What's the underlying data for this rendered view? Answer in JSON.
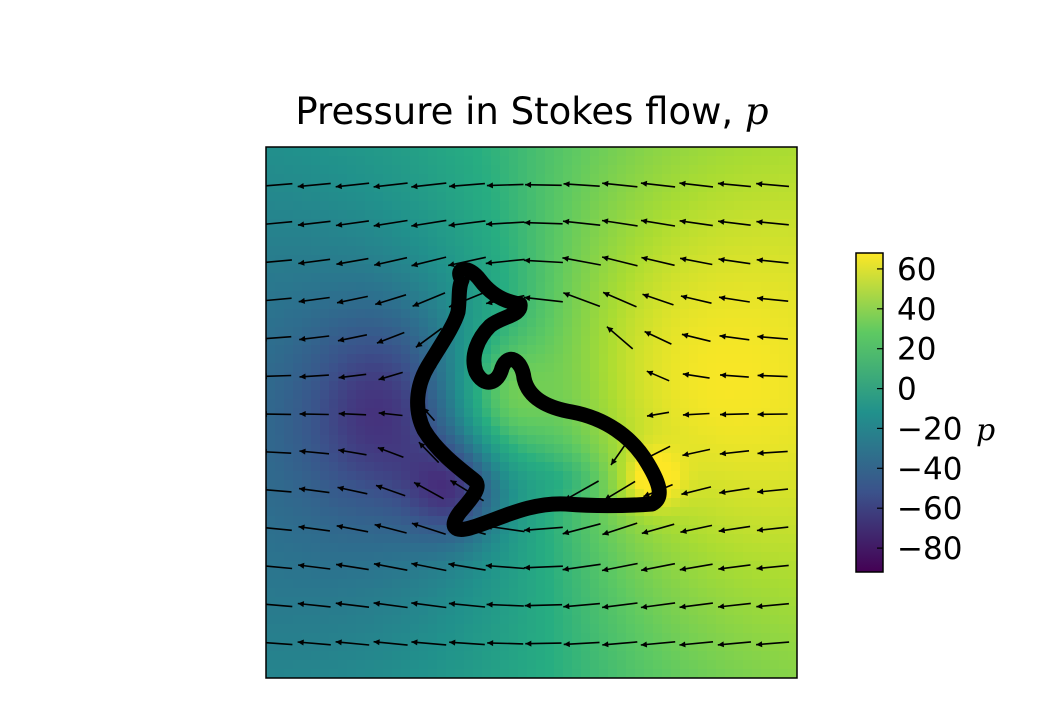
{
  "chart_data": {
    "type": "heatmap",
    "title": "Pressure in Stokes flow, ",
    "title_symbol": "p",
    "field": "pressure",
    "colormap": "viridis",
    "quiver": true,
    "axes_ticks_visible": false,
    "obstacle": "seal-shaped closed curve drawn in thick black",
    "colorbar": {
      "label": "p",
      "vmin": -92,
      "vmax": 68,
      "ticks": [
        60,
        40,
        20,
        0,
        -20,
        -40,
        -60,
        -80
      ],
      "tick_labels": [
        "60",
        "40",
        "20",
        "0",
        "−20",
        "−40",
        "−60",
        "−80"
      ]
    },
    "colors": {
      "low": "#440154",
      "mid": "#21918c",
      "high": "#fde725",
      "obstacle": "#000000"
    }
  }
}
